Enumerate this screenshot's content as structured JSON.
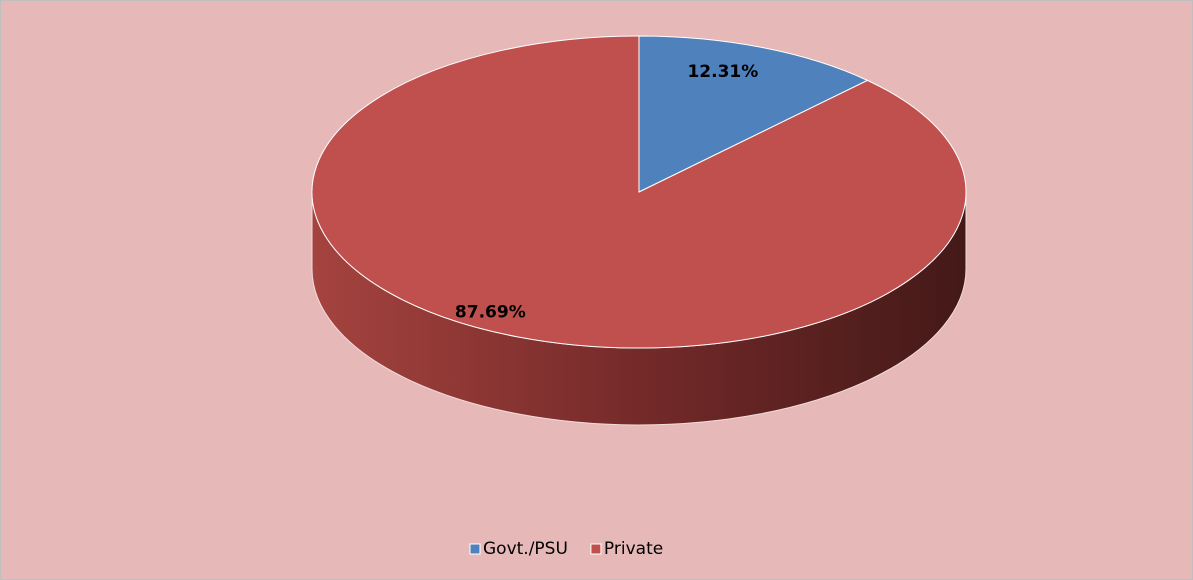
{
  "chart_data": {
    "type": "pie",
    "categories": [
      "Govt./PSU",
      "Private"
    ],
    "values": [
      12.31,
      87.69
    ],
    "value_labels": [
      "12.31%",
      "87.69%"
    ],
    "colors": [
      "#4f81bd",
      "#c0504d"
    ],
    "legend": "bottom"
  }
}
